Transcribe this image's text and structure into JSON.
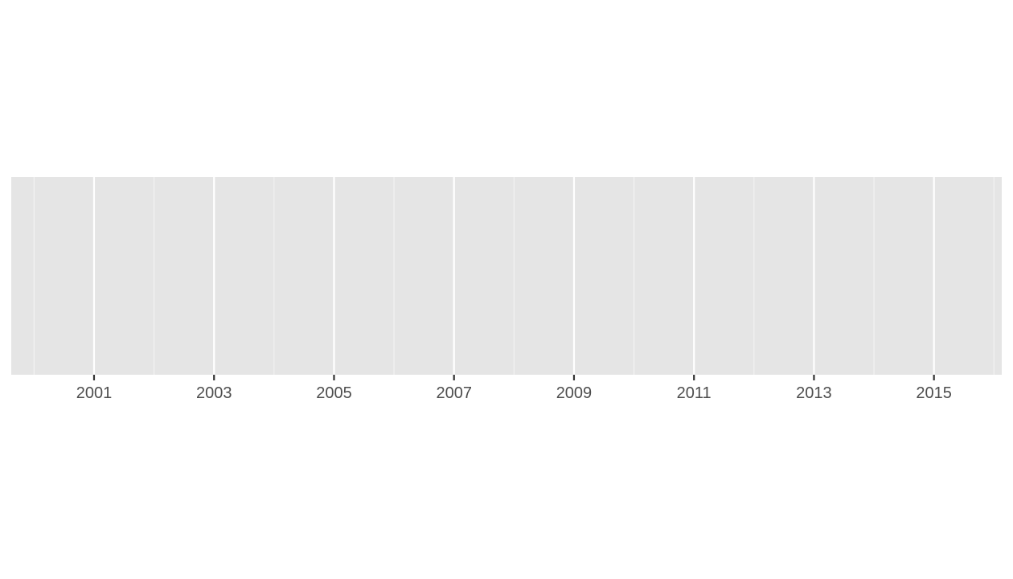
{
  "chart_data": {
    "type": "timeline",
    "title": "",
    "xlabel": "",
    "ylabel": "",
    "x_axis": {
      "type": "date",
      "range": [
        1999.62,
        2016.13
      ],
      "major_ticks": [
        2001,
        2003,
        2005,
        2007,
        2009,
        2011,
        2013,
        2015
      ],
      "minor_ticks": [
        2000,
        2002,
        2004,
        2006,
        2008,
        2010,
        2012,
        2014,
        2016
      ],
      "tick_labels": [
        "2001",
        "2003",
        "2005",
        "2007",
        "2009",
        "2011",
        "2013",
        "2015"
      ]
    },
    "y_axis": {
      "visible": false
    },
    "series": [],
    "grid": true,
    "legend": "none",
    "colors": {
      "panel_background": "#e5e5e5",
      "grid_major": "#ffffff",
      "grid_minor": "#f2f2f2",
      "tick_mark": "#333333",
      "tick_label": "#4d4d4d"
    }
  }
}
